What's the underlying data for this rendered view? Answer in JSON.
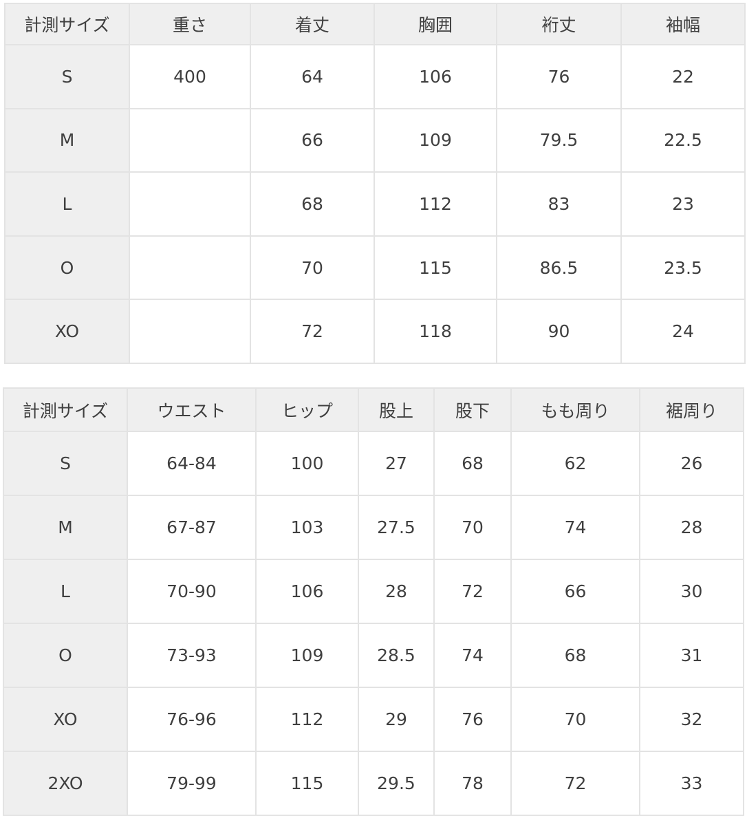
{
  "table1": {
    "headers": [
      "計測サイズ",
      "重さ",
      "着丈",
      "胸囲",
      "裄丈",
      "袖幅"
    ],
    "rows": [
      [
        "S",
        "400",
        "64",
        "106",
        "76",
        "22"
      ],
      [
        "M",
        "",
        "66",
        "109",
        "79.5",
        "22.5"
      ],
      [
        "L",
        "",
        "68",
        "112",
        "83",
        "23"
      ],
      [
        "O",
        "",
        "70",
        "115",
        "86.5",
        "23.5"
      ],
      [
        "XO",
        "",
        "72",
        "118",
        "90",
        "24"
      ]
    ]
  },
  "table2": {
    "headers": [
      "計測サイズ",
      "ウエスト",
      "ヒップ",
      "股上",
      "股下",
      "もも周り",
      "裾周り"
    ],
    "rows": [
      [
        "S",
        "64-84",
        "100",
        "27",
        "68",
        "62",
        "26"
      ],
      [
        "M",
        "67-87",
        "103",
        "27.5",
        "70",
        "74",
        "28"
      ],
      [
        "L",
        "70-90",
        "106",
        "28",
        "72",
        "66",
        "30"
      ],
      [
        "O",
        "73-93",
        "109",
        "28.5",
        "74",
        "68",
        "31"
      ],
      [
        "XO",
        "76-96",
        "112",
        "29",
        "76",
        "70",
        "32"
      ],
      [
        "2XO",
        "79-99",
        "115",
        "29.5",
        "78",
        "72",
        "33"
      ]
    ]
  }
}
